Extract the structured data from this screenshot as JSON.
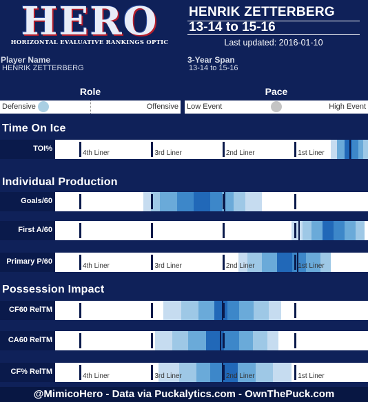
{
  "logo": {
    "word": "HERO",
    "subtitle": "HORIZONTAL EVALUATIVE RANKINGS OPTIC"
  },
  "header": {
    "player": "HENRIK ZETTERBERG",
    "span": "13-14 to 15-16",
    "updated": "Last updated: 2016-01-10"
  },
  "info": {
    "player_name_label": "Player Name",
    "player_name_value": "HENRIK ZETTERBERG",
    "span_label": "3-Year Span",
    "span_value": "13-14 to 15-16"
  },
  "role": {
    "title": "Role",
    "left": "Defensive",
    "right": "Offensive",
    "level": 0.24,
    "knob_color": "#aacfe3"
  },
  "pace": {
    "title": "Pace",
    "left": "Low Event",
    "right": "High Event",
    "level": 0.5,
    "knob_color": "#c4c4c4"
  },
  "liner_labels": [
    "4th Liner",
    "3rd Liner",
    "2nd Liner",
    "1st Liner"
  ],
  "sections": {
    "toi": "Time On Ice",
    "production": "Individual Production",
    "possession": "Possession Impact"
  },
  "footer": "@MimicoHero - Data via Puckalytics.com - OwnThePuck.com",
  "chart_data": {
    "type": "heatmap",
    "scale": "Line tier (fraction of width: 4th liner 0 to 1st liner 1)",
    "palette": [
      "#c6dcf0",
      "#9ec8e6",
      "#6aaad9",
      "#3d87c9",
      "#2168b8",
      "#0b4fa3"
    ],
    "rows": [
      {
        "label": "TOI%",
        "show_liners": true,
        "player_mark": 0.94,
        "bands": [
          [
            0.88,
            0.9,
            0
          ],
          [
            0.9,
            0.925,
            2
          ],
          [
            0.925,
            0.95,
            4
          ],
          [
            0.95,
            0.97,
            3
          ],
          [
            0.97,
            0.985,
            2
          ],
          [
            0.985,
            1.0,
            1
          ]
        ]
      },
      {
        "label": "Goals/60",
        "show_liners": false,
        "player_mark": 0.539,
        "bands": [
          [
            0.283,
            0.306,
            0
          ],
          [
            0.306,
            0.335,
            1
          ],
          [
            0.335,
            0.389,
            2
          ],
          [
            0.389,
            0.443,
            3
          ],
          [
            0.443,
            0.495,
            4
          ],
          [
            0.495,
            0.532,
            3
          ],
          [
            0.532,
            0.571,
            2
          ],
          [
            0.571,
            0.608,
            1
          ],
          [
            0.608,
            0.66,
            0
          ]
        ]
      },
      {
        "label": "First A/60",
        "show_liners": false,
        "player_mark": 0.777,
        "bands": [
          [
            0.755,
            0.79,
            0
          ],
          [
            0.79,
            0.82,
            1
          ],
          [
            0.82,
            0.855,
            2
          ],
          [
            0.855,
            0.89,
            4
          ],
          [
            0.89,
            0.925,
            3
          ],
          [
            0.925,
            0.96,
            2
          ],
          [
            0.96,
            0.987,
            1
          ]
        ]
      },
      {
        "label": "Primary P/60",
        "show_liners": true,
        "player_mark": 0.773,
        "bands": [
          [
            0.586,
            0.614,
            0
          ],
          [
            0.614,
            0.661,
            1
          ],
          [
            0.661,
            0.709,
            2
          ],
          [
            0.709,
            0.758,
            4
          ],
          [
            0.758,
            0.802,
            3
          ],
          [
            0.802,
            0.849,
            2
          ],
          [
            0.849,
            0.881,
            1
          ]
        ]
      },
      {
        "label": "CF60 RelTM",
        "show_liners": false,
        "player_mark": 0.533,
        "bands": [
          [
            0.346,
            0.403,
            0
          ],
          [
            0.403,
            0.458,
            1
          ],
          [
            0.458,
            0.509,
            2
          ],
          [
            0.509,
            0.551,
            4
          ],
          [
            0.551,
            0.588,
            3
          ],
          [
            0.588,
            0.634,
            2
          ],
          [
            0.634,
            0.683,
            1
          ],
          [
            0.683,
            0.722,
            0
          ]
        ]
      },
      {
        "label": "CA60 RelTM",
        "show_liners": false,
        "player_mark": 0.526,
        "bands": [
          [
            0.319,
            0.374,
            0
          ],
          [
            0.374,
            0.425,
            1
          ],
          [
            0.425,
            0.482,
            2
          ],
          [
            0.482,
            0.539,
            4
          ],
          [
            0.539,
            0.588,
            3
          ],
          [
            0.588,
            0.632,
            2
          ],
          [
            0.632,
            0.678,
            1
          ],
          [
            0.678,
            0.712,
            0
          ]
        ]
      },
      {
        "label": "CF% RelTM",
        "show_liners": true,
        "player_mark": 0.533,
        "bands": [
          [
            0.33,
            0.396,
            0
          ],
          [
            0.396,
            0.452,
            1
          ],
          [
            0.452,
            0.496,
            2
          ],
          [
            0.496,
            0.535,
            3
          ],
          [
            0.535,
            0.584,
            4
          ],
          [
            0.584,
            0.64,
            2
          ],
          [
            0.64,
            0.697,
            1
          ],
          [
            0.697,
            0.755,
            0
          ]
        ]
      }
    ]
  }
}
